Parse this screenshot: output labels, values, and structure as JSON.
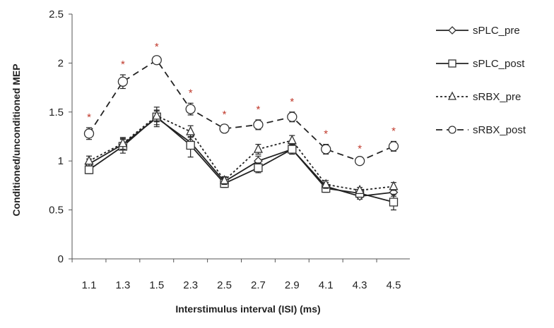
{
  "chart_data": {
    "type": "line",
    "title": "",
    "xlabel": "Interstimulus interval (ISI) (ms)",
    "ylabel": "Conditioned/unconditioned MEP",
    "categories": [
      "1.1",
      "1.3",
      "1.5",
      "2.3",
      "2.5",
      "2.7",
      "2.9",
      "4.1",
      "4.3",
      "4.5"
    ],
    "ylim": [
      0,
      2.5
    ],
    "yticks": [
      "0",
      "0.5",
      "1",
      "1.5",
      "2",
      "2.5"
    ],
    "grid": false,
    "legend_position": "right",
    "significance_marker": "*",
    "series": [
      {
        "name": "sPLC_pre",
        "style": "solid",
        "marker": "diamond",
        "values": [
          0.97,
          1.17,
          1.44,
          1.19,
          0.79,
          1.0,
          1.12,
          0.74,
          0.64,
          0.68
        ],
        "errors": [
          0.05,
          0.06,
          0.07,
          0.06,
          0.04,
          0.05,
          0.05,
          0.04,
          0.03,
          0.04
        ]
      },
      {
        "name": "sPLC_post",
        "style": "solid",
        "marker": "square",
        "values": [
          0.91,
          1.15,
          1.45,
          1.16,
          0.77,
          0.93,
          1.12,
          0.72,
          0.67,
          0.58
        ],
        "errors": [
          0.04,
          0.07,
          0.1,
          0.12,
          0.04,
          0.05,
          0.05,
          0.04,
          0.03,
          0.08
        ]
      },
      {
        "name": "sRBX_pre",
        "style": "dotted",
        "marker": "triangle",
        "values": [
          1.0,
          1.18,
          1.46,
          1.3,
          0.8,
          1.12,
          1.21,
          0.76,
          0.7,
          0.74
        ],
        "errors": [
          0.05,
          0.06,
          0.06,
          0.06,
          0.04,
          0.05,
          0.05,
          0.04,
          0.03,
          0.04
        ]
      },
      {
        "name": "sRBX_post",
        "style": "dashed",
        "marker": "circle",
        "values": [
          1.28,
          1.81,
          2.03,
          1.53,
          1.33,
          1.37,
          1.45,
          1.12,
          1.0,
          1.15
        ],
        "errors": [
          0.06,
          0.07,
          0.03,
          0.06,
          0.04,
          0.05,
          0.05,
          0.05,
          0.02,
          0.05
        ]
      }
    ],
    "significant_categories": [
      "1.1",
      "1.3",
      "1.5",
      "2.3",
      "2.5",
      "2.7",
      "2.9",
      "4.1",
      "4.3",
      "4.5"
    ]
  }
}
